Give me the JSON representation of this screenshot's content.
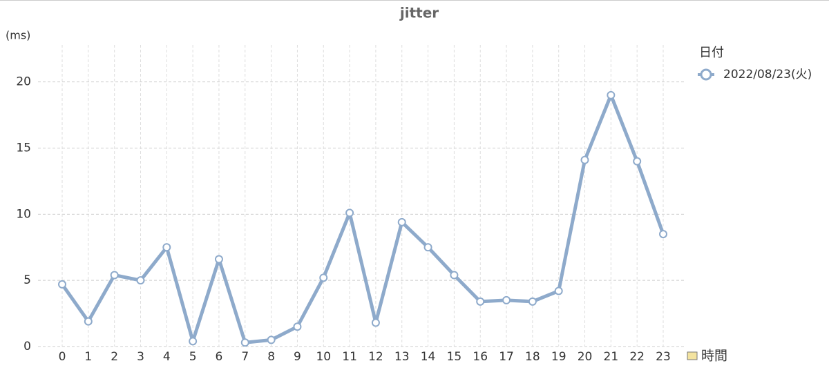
{
  "chart_data": {
    "type": "line",
    "title": "jitter",
    "y_label": "(ms)",
    "x_label": "時間",
    "legend_title": "日付",
    "categories": [
      "0",
      "1",
      "2",
      "3",
      "4",
      "5",
      "6",
      "7",
      "8",
      "9",
      "10",
      "11",
      "12",
      "13",
      "14",
      "15",
      "16",
      "17",
      "18",
      "19",
      "20",
      "21",
      "22",
      "23"
    ],
    "series": [
      {
        "name": "2022/08/23(火)",
        "color": "#8eaacb",
        "values": [
          4.7,
          1.9,
          5.4,
          5.0,
          7.5,
          0.4,
          6.6,
          0.3,
          0.5,
          1.5,
          5.2,
          10.1,
          1.8,
          9.4,
          7.5,
          5.4,
          3.4,
          3.5,
          3.4,
          4.2,
          14.1,
          19.0,
          14.0,
          8.5
        ]
      }
    ],
    "ylim": [
      0,
      22.8
    ],
    "yticks": [
      0,
      5,
      10,
      15,
      20
    ],
    "grid": true
  }
}
